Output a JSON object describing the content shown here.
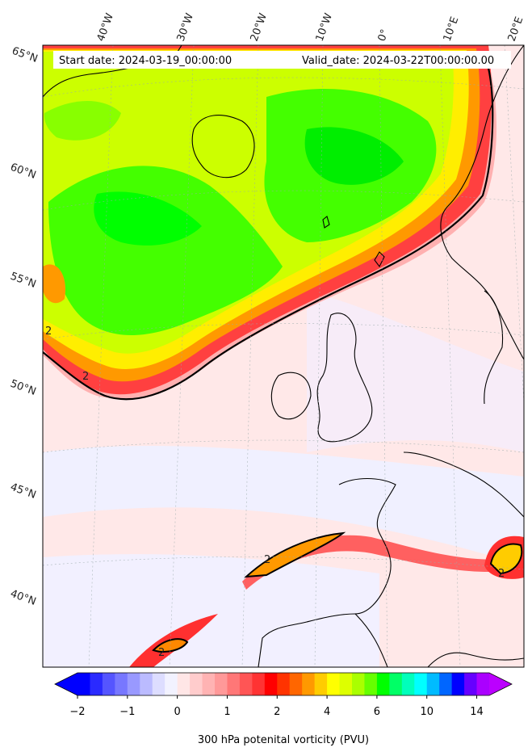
{
  "header": {
    "start_date": "Start date: 2024-03-19_00:00:00",
    "valid_date": "Valid_date: 2024-03-22T00:00:00.00"
  },
  "lon_labels": [
    "40°W",
    "30°W",
    "20°W",
    "10°W",
    "0°",
    "10°E",
    "20°E"
  ],
  "lat_labels": [
    "65°N",
    "60°N",
    "55°N",
    "50°N",
    "45°N",
    "40°N"
  ],
  "contour_label": "2",
  "colorbar": {
    "title": "300 hPa potenital vorticity (PVU)",
    "ticks": [
      "−2",
      "−1",
      "0",
      "1",
      "2",
      "4",
      "6",
      "10",
      "14"
    ],
    "colors": [
      "#0000ff",
      "#2a2aff",
      "#5555ff",
      "#7777ff",
      "#9999ff",
      "#bbbbff",
      "#ddddff",
      "#f2f2ff",
      "#ffe6e6",
      "#ffcccc",
      "#ffb3b3",
      "#ff9999",
      "#ff7777",
      "#ff5555",
      "#ff3333",
      "#ff0000",
      "#ff3300",
      "#ff6600",
      "#ff9900",
      "#ffcc00",
      "#ffff00",
      "#ddff00",
      "#aaff00",
      "#66ff00",
      "#00ff00",
      "#00ff66",
      "#00ffbb",
      "#00ffff",
      "#00bbff",
      "#0066ff",
      "#0000ff",
      "#6600ff",
      "#aa00ff"
    ],
    "extend_low_color": "#0000ff",
    "extend_high_color": "#bb00ff"
  },
  "colors": {
    "background_pink": "#ffe8e8",
    "pale_blue": "#f0f0ff",
    "green": "#33ff00",
    "yellow_green": "#ccff00",
    "red": "#ff2020",
    "orange": "#ff9900"
  }
}
